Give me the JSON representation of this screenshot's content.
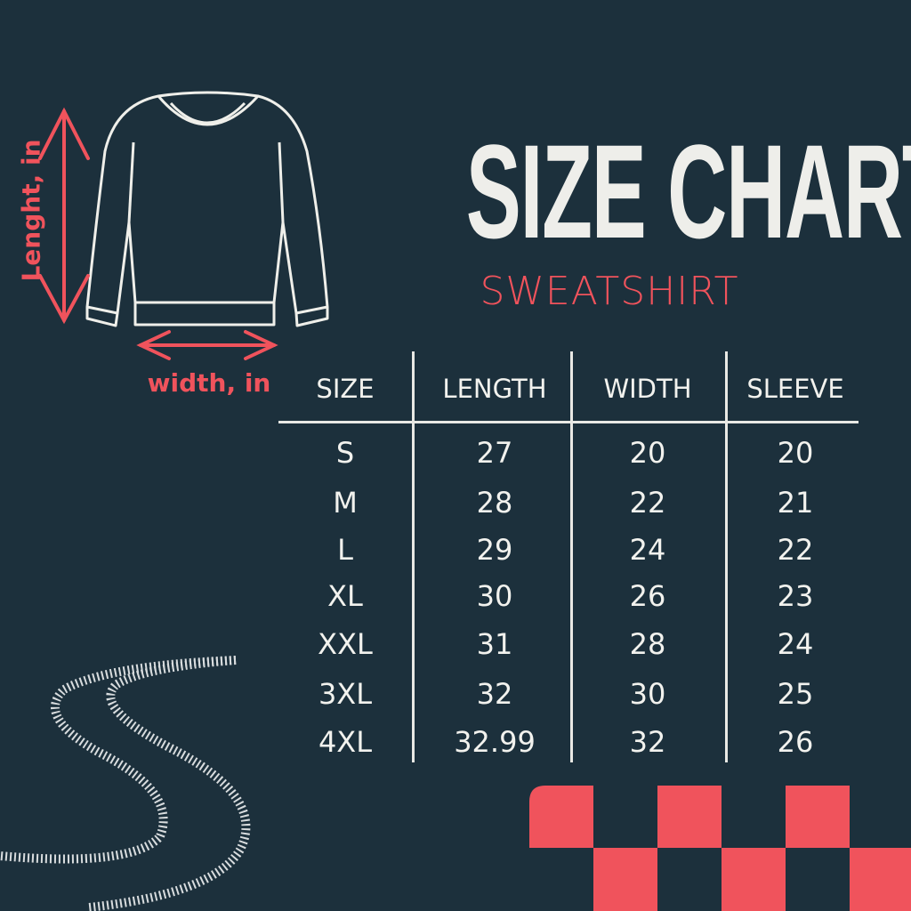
{
  "header": {
    "title": "SIZE CHART",
    "subtitle": "SWEATSHIRT"
  },
  "diagram": {
    "length_label": "Lenght, in",
    "width_label": "width, in"
  },
  "table": {
    "columns": [
      "SIZE",
      "LENGTH",
      "WIDTH",
      "SLEEVE"
    ],
    "rows": [
      [
        "S",
        "27",
        "20",
        "20"
      ],
      [
        "M",
        "28",
        "22",
        "21"
      ],
      [
        "L",
        "29",
        "24",
        "22"
      ],
      [
        "XL",
        "30",
        "26",
        "23"
      ],
      [
        "XXL",
        "31",
        "28",
        "24"
      ],
      [
        "3XL",
        "32",
        "30",
        "25"
      ],
      [
        "4XL",
        "32.99",
        "32",
        "26"
      ]
    ]
  },
  "colors": {
    "background": "#1c303c",
    "accent": "#f0535c",
    "text": "#f2f2ee"
  },
  "decorations": [
    "sweatshirt-outline",
    "tire-tracks",
    "checkered-flag"
  ]
}
